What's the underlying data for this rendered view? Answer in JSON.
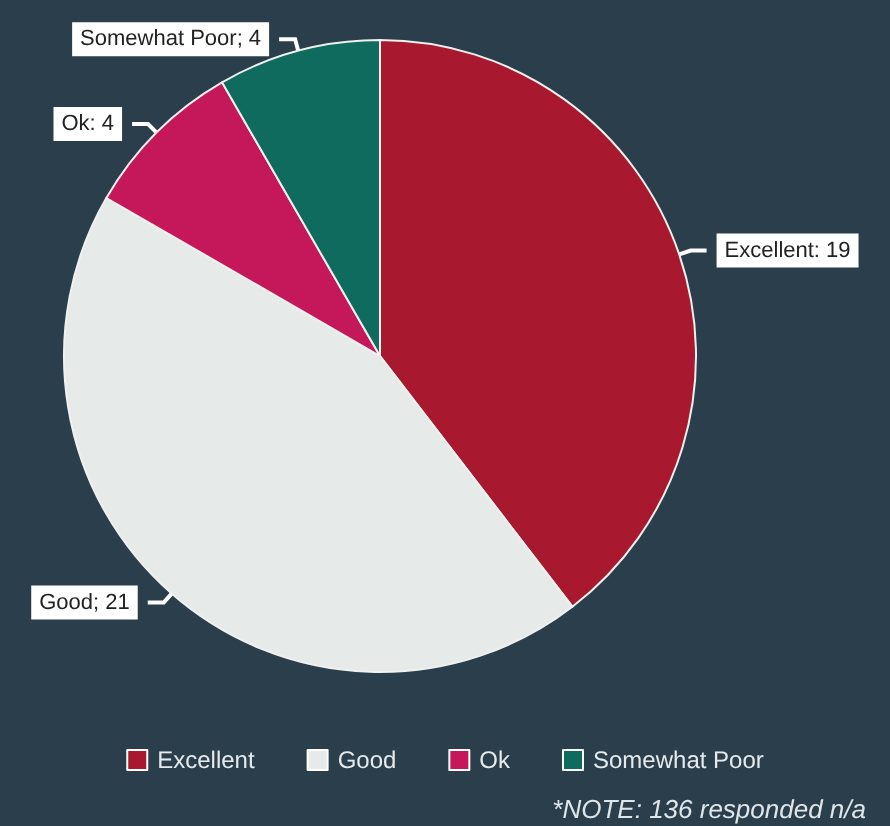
{
  "chart_data": {
    "type": "pie",
    "categories": [
      "Excellent",
      "Good",
      "Ok",
      "Somewhat Poor"
    ],
    "values": [
      19,
      21,
      4,
      4
    ],
    "colors": [
      "#a8192f",
      "#e6eae8",
      "#c4185a",
      "#0f6b5d"
    ],
    "value_labels": [
      "Excellent: 19",
      "Good; 21",
      "Ok: 4",
      "Somewhat Poor; 4"
    ],
    "legend": "bottom",
    "annotations": [
      "*NOTE: 136 responded n/a"
    ]
  }
}
